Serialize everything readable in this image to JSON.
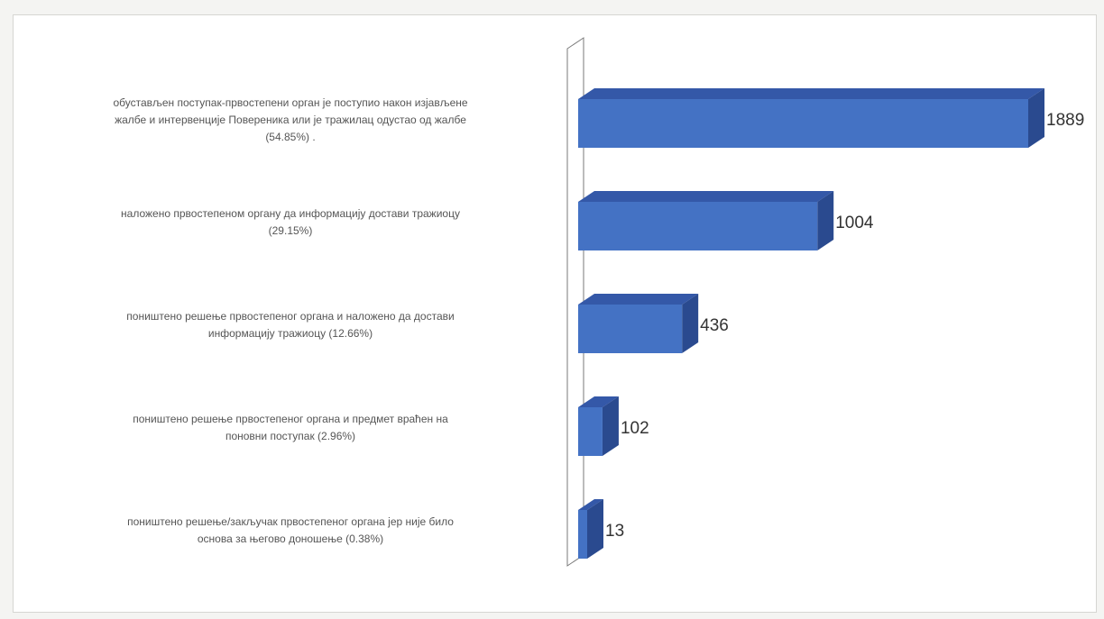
{
  "chart_data": {
    "type": "bar",
    "orientation": "horizontal",
    "style": "3d",
    "categories": [
      "обустављен поступак-првостепени орган је поступио након изјављене\nжалбе и интервенције Повереника или је тражилац одустао од жалбе\n(54.85%)  .",
      "наложено првостепеном органу да информацију достави тражиоцу\n(29.15%)",
      "поништено решење првостепеног органа и наложено да достави\nинформацију тражиоцу (12.66%)",
      "поништено решење првостепеног органа и предмет враћен на\nпоновни поступак (2.96%)",
      "поништено решење/закључак првостепеног органа јер није било\nоснова за његово доношење (0.38%)"
    ],
    "values": [
      1889,
      1004,
      436,
      102,
      13
    ],
    "data_labels": [
      "1889",
      "1004",
      "436",
      "102",
      "13"
    ],
    "colors": {
      "bar_front": "#4472c4",
      "bar_top": "#3458a8",
      "bar_side": "#2a4a8f",
      "wall": "#7a7a7a"
    },
    "xlim": [
      0,
      1889
    ],
    "grid": false,
    "legend": "none"
  }
}
